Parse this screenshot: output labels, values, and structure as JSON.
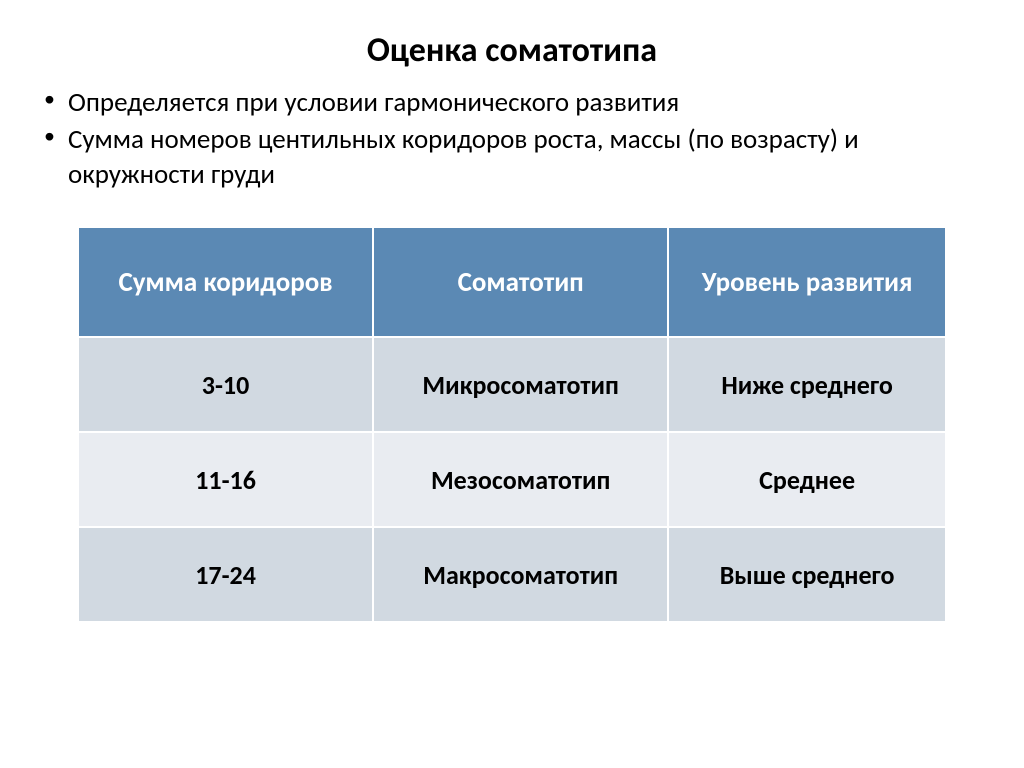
{
  "title": "Оценка соматотипа",
  "bullets": [
    "Определяется при условии гармонического развития",
    "Сумма номеров центильных коридоров роста, массы (по возрасту) и окружности груди"
  ],
  "table": {
    "header_bg": "#5b89b4",
    "header_fg": "#ffffff",
    "row_bg_odd": "#d1d9e1",
    "row_bg_even": "#e9ecf1",
    "row_fg": "#000000",
    "border_color": "#ffffff",
    "columns": [
      {
        "label": "Сумма коридоров",
        "width_pct": 34
      },
      {
        "label": "Соматотип",
        "width_pct": 34
      },
      {
        "label": "Уровень развития",
        "width_pct": 32
      }
    ],
    "rows": [
      [
        "3-10",
        "Микросоматотип",
        "Ниже среднего"
      ],
      [
        "11-16",
        "Мезосоматотип",
        "Среднее"
      ],
      [
        "17-24",
        "Макросоматотип",
        "Выше среднего"
      ]
    ],
    "header_fontsize": 27,
    "cell_fontsize": 26,
    "font_weight": 700
  }
}
